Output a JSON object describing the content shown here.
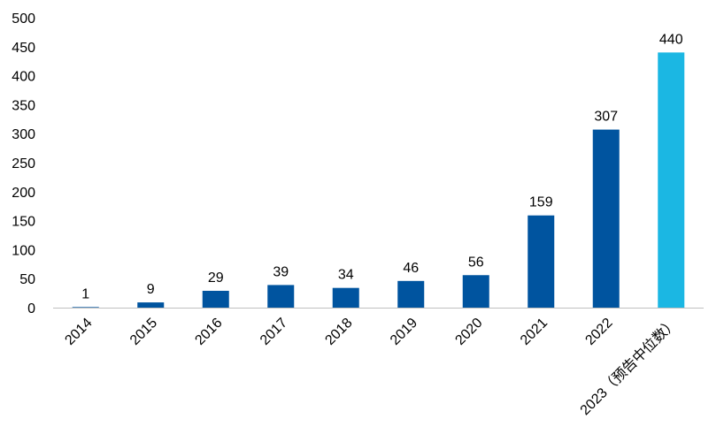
{
  "chart_data": {
    "type": "bar",
    "categories": [
      "2014",
      "2015",
      "2016",
      "2017",
      "2018",
      "2019",
      "2020",
      "2021",
      "2022",
      "2023（预告中位数）"
    ],
    "values": [
      1,
      9,
      29,
      39,
      34,
      46,
      56,
      159,
      307,
      440
    ],
    "data_labels": [
      "1",
      "9",
      "29",
      "39",
      "34",
      "46",
      "56",
      "159",
      "307",
      "440"
    ],
    "title": "",
    "xlabel": "",
    "ylabel": "",
    "ylim": [
      0,
      500
    ],
    "yticks": [
      0,
      50,
      100,
      150,
      200,
      250,
      300,
      350,
      400,
      450,
      500
    ],
    "ytick_labels": [
      "0",
      "50",
      "100",
      "150",
      "200",
      "250",
      "300",
      "350",
      "400",
      "450",
      "500"
    ],
    "grid": false,
    "legend": "none",
    "colors": {
      "bar": "#00549F",
      "highlight_bar": "#1BB7E3",
      "axis": "#BFBFBF",
      "text": "#000000"
    },
    "highlight_index": 9
  }
}
